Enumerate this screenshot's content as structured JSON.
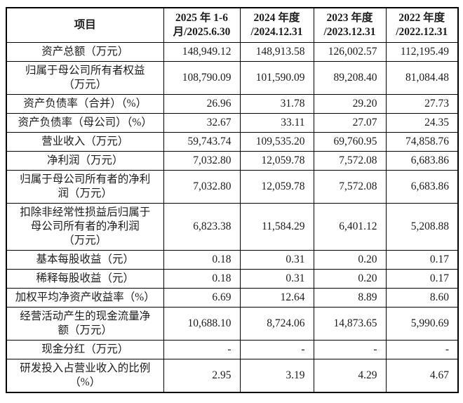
{
  "page": {
    "background_color": "#ffffff",
    "text_color": "#1c1c1c",
    "border_color": "#000000"
  },
  "table": {
    "header": [
      "项目",
      "2025 年 1-6\n月/2025.6.30",
      "2024 年度\n/2024.12.31",
      "2023 年度\n/2023.12.31",
      "2022 年度\n/2022.12.31"
    ],
    "rows": [
      {
        "label": "资产总额（万元）",
        "values": [
          "148,949.12",
          "148,913.58",
          "126,002.57",
          "112,195.49"
        ]
      },
      {
        "label": "归属于母公司所有者权益\n（万元）",
        "values": [
          "108,790.09",
          "101,590.09",
          "89,208.40",
          "81,084.48"
        ]
      },
      {
        "label": "资产负债率（合并）（%）",
        "values": [
          "26.96",
          "31.78",
          "29.20",
          "27.73"
        ]
      },
      {
        "label": "资产负债率（母公司）（%）",
        "values": [
          "32.67",
          "33.11",
          "27.07",
          "24.35"
        ]
      },
      {
        "label": "营业收入（万元）",
        "values": [
          "59,743.74",
          "109,535.20",
          "69,760.95",
          "74,858.76"
        ]
      },
      {
        "label": "净利润（万元）",
        "values": [
          "7,032.80",
          "12,059.78",
          "7,572.08",
          "6,683.86"
        ]
      },
      {
        "label": "归属于母公司所有者的净利\n润（万元）",
        "values": [
          "7,032.80",
          "12,059.78",
          "7,572.08",
          "6,683.86"
        ]
      },
      {
        "label": "扣除非经常性损益后归属于\n母公司所有者的净利润\n（万元）",
        "values": [
          "6,823.38",
          "11,584.29",
          "6,401.12",
          "5,208.88"
        ]
      },
      {
        "label": "基本每股收益（元）",
        "values": [
          "0.18",
          "0.31",
          "0.20",
          "0.17"
        ]
      },
      {
        "label": "稀释每股收益（元）",
        "values": [
          "0.18",
          "0.31",
          "0.20",
          "0.17"
        ]
      },
      {
        "label": "加权平均净资产收益率（%）",
        "values": [
          "6.69",
          "12.64",
          "8.89",
          "8.60"
        ]
      },
      {
        "label": "经营活动产生的现金流量净\n额（万元）",
        "values": [
          "10,688.10",
          "8,724.06",
          "14,873.65",
          "5,990.69"
        ]
      },
      {
        "label": "现金分红（万元）",
        "values": [
          "-",
          "-",
          "-",
          "-"
        ]
      },
      {
        "label": "研发投入占营业收入的比例\n（%）",
        "values": [
          "2.95",
          "3.19",
          "4.29",
          "4.67"
        ]
      }
    ]
  }
}
